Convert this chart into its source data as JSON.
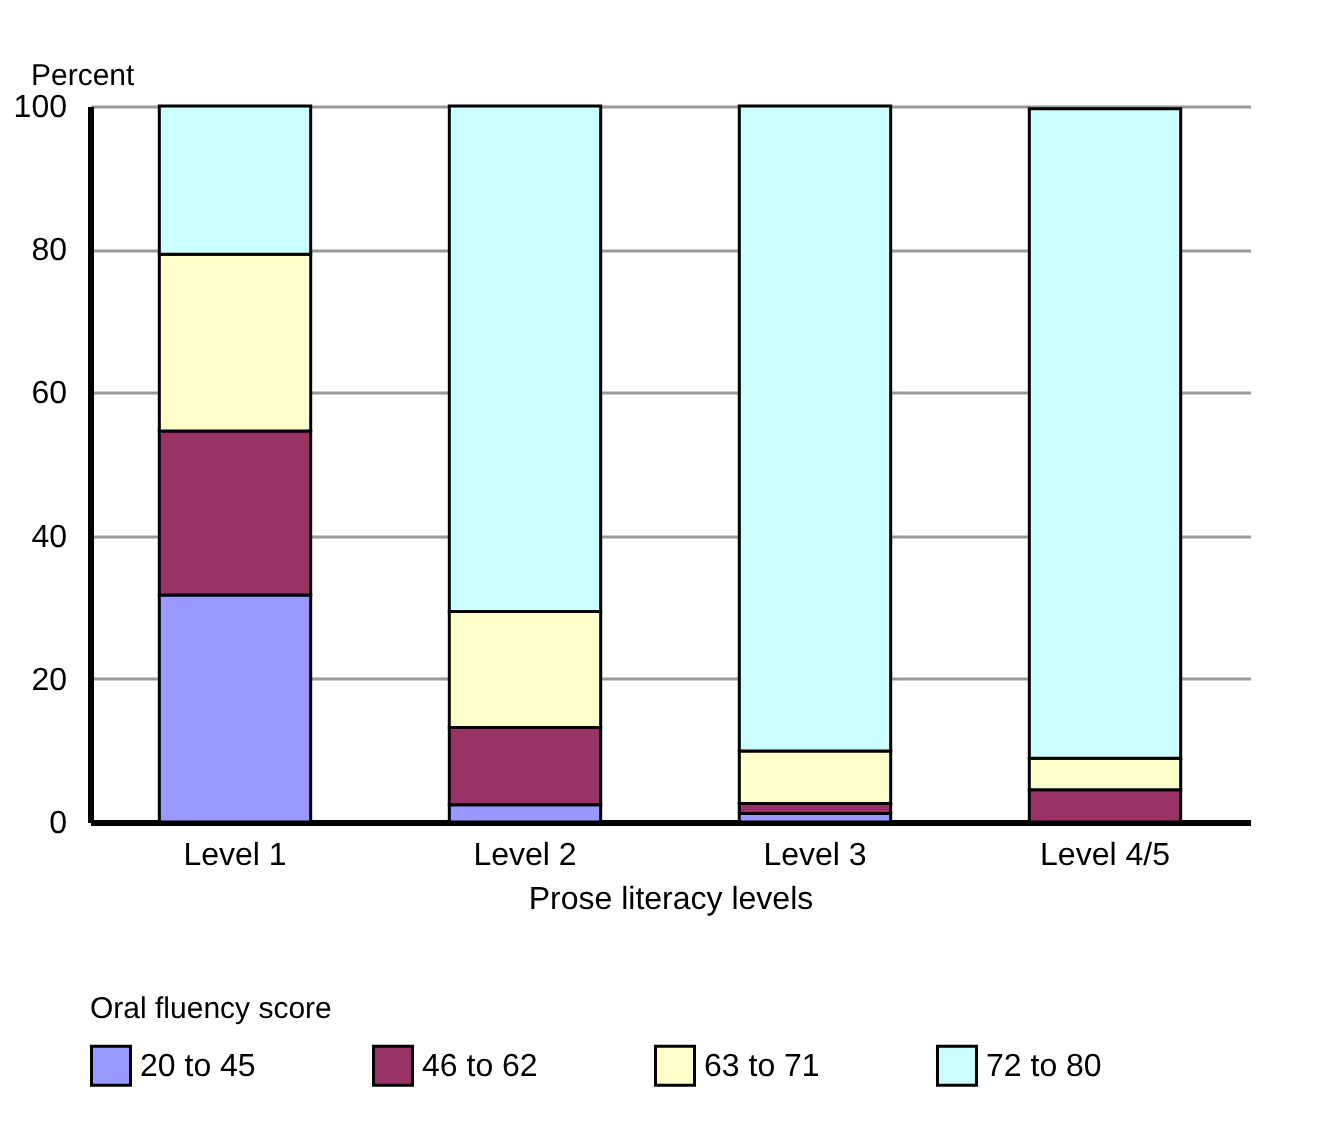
{
  "chart_data": {
    "type": "bar",
    "stacked": true,
    "ylabel": "Percent",
    "xlabel": "Prose literacy levels",
    "legend_title": "Oral fluency score",
    "legend": "bottom",
    "grid": "y",
    "categories": [
      "Level 1",
      "Level 2",
      "Level 3",
      "Level 4/5"
    ],
    "ylim": [
      0,
      100
    ],
    "yticks": [
      0,
      20,
      40,
      60,
      80,
      100
    ],
    "series": [
      {
        "name": "20 to 45",
        "color": "#9999ff",
        "values": [
          31.7,
          2.4,
          1.2,
          null
        ]
      },
      {
        "name": "46 to 62",
        "color": "#993366",
        "values": [
          22.9,
          10.8,
          1.4,
          4.5
        ]
      },
      {
        "name": "63 to 71",
        "color": "#ffffcc",
        "values": [
          24.7,
          16.2,
          7.3,
          4.4
        ]
      },
      {
        "name": "72 to 80",
        "color": "#ccffff",
        "values": [
          20.7,
          70.6,
          90.1,
          90.7
        ]
      }
    ]
  }
}
